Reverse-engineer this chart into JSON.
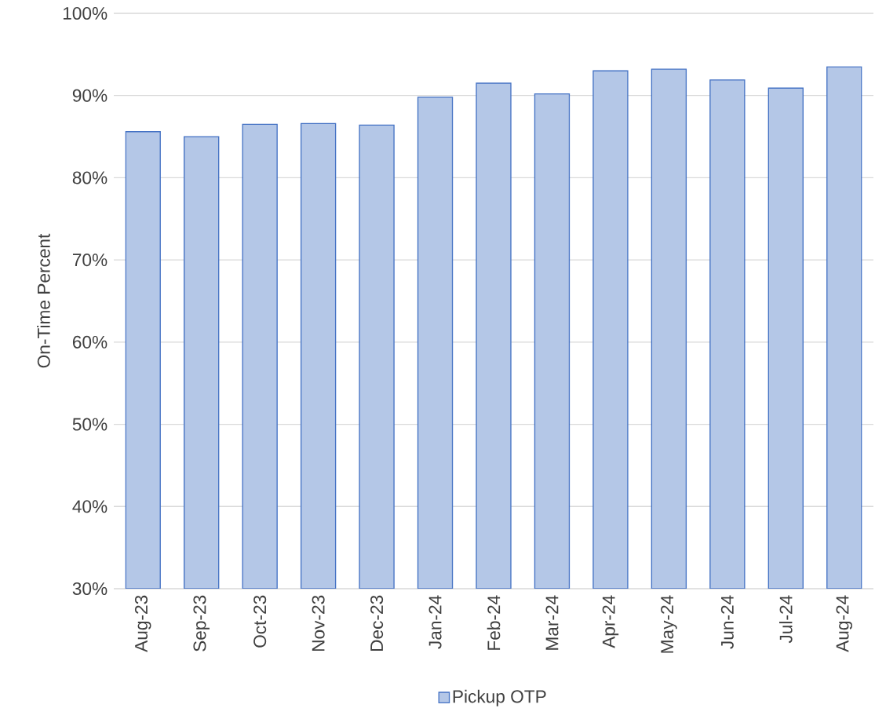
{
  "chart_data": {
    "type": "bar",
    "ylabel": "On-Time Percent",
    "categories": [
      "Aug-23",
      "Sep-23",
      "Oct-23",
      "Nov-23",
      "Dec-23",
      "Jan-24",
      "Feb-24",
      "Mar-24",
      "Apr-24",
      "May-24",
      "Jun-24",
      "Jul-24",
      "Aug-24"
    ],
    "series": [
      {
        "name": "Pickup OTP",
        "color": "#b4c7e7",
        "values": [
          85.6,
          85.0,
          86.5,
          86.6,
          86.4,
          89.8,
          91.5,
          90.2,
          93.0,
          93.2,
          91.9,
          90.9,
          93.5
        ]
      }
    ],
    "ylim": [
      30,
      100
    ],
    "yticks": [
      {
        "value": 30,
        "label": "30%"
      },
      {
        "value": 40,
        "label": "40%"
      },
      {
        "value": 50,
        "label": "50%"
      },
      {
        "value": 60,
        "label": "60%"
      },
      {
        "value": 70,
        "label": "70%"
      },
      {
        "value": 80,
        "label": "80%"
      },
      {
        "value": 90,
        "label": "90%"
      },
      {
        "value": 100,
        "label": "100%"
      }
    ],
    "grid": "y",
    "legend": "bottom"
  }
}
